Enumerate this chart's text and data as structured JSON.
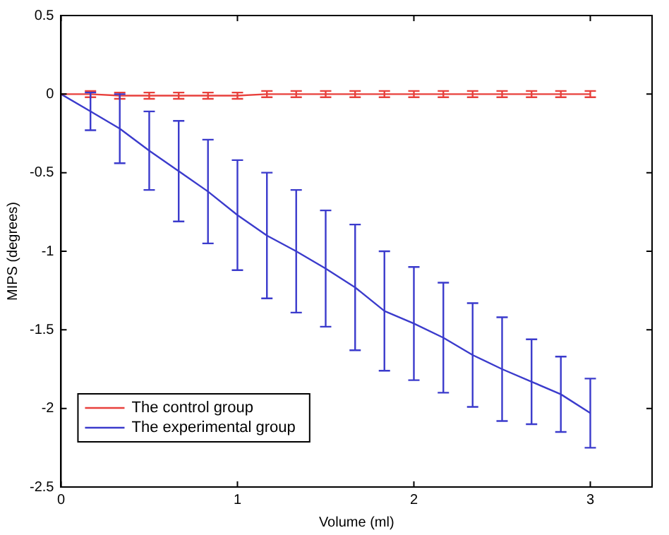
{
  "chart_data": {
    "type": "line",
    "xlabel": "Volume (ml)",
    "ylabel": "MIPS (degrees)",
    "x": [
      0,
      0.167,
      0.333,
      0.5,
      0.667,
      0.833,
      1,
      1.167,
      1.333,
      1.5,
      1.667,
      1.833,
      2,
      2.167,
      2.333,
      2.5,
      2.667,
      2.833,
      3
    ],
    "xlim": [
      0,
      3.35
    ],
    "xticks": [
      0,
      1,
      2,
      3
    ],
    "ylim": [
      -2.5,
      0.5
    ],
    "yticks": [
      -2.5,
      -2,
      -1.5,
      -1,
      -0.5,
      0,
      0.5
    ],
    "grid": false,
    "legend": "bottom left",
    "marker": "none",
    "line_style": "solid",
    "series": [
      {
        "name": "The control group",
        "color": "#e8403c",
        "values": [
          0,
          0,
          -0.01,
          -0.01,
          -0.01,
          -0.01,
          -0.01,
          0,
          0,
          0,
          0,
          0,
          0,
          0,
          0,
          0,
          0,
          0,
          0
        ],
        "errors": [
          null,
          0.02,
          0.02,
          0.02,
          0.02,
          0.02,
          0.02,
          0.02,
          0.02,
          0.02,
          0.02,
          0.02,
          0.02,
          0.02,
          0.02,
          0.02,
          0.02,
          0.02,
          0.02
        ]
      },
      {
        "name": "The experimental group",
        "color": "#3b3bcc",
        "values": [
          0,
          -0.11,
          -0.22,
          -0.36,
          -0.49,
          -0.62,
          -0.77,
          -0.9,
          -1,
          -1.11,
          -1.23,
          -1.38,
          -1.46,
          -1.55,
          -1.66,
          -1.75,
          -1.83,
          -1.91,
          -2.03
        ],
        "errors": [
          null,
          0.12,
          0.22,
          0.25,
          0.32,
          0.33,
          0.35,
          0.4,
          0.39,
          0.37,
          0.4,
          0.38,
          0.36,
          0.35,
          0.33,
          0.33,
          0.27,
          0.24,
          0.22
        ]
      }
    ]
  }
}
